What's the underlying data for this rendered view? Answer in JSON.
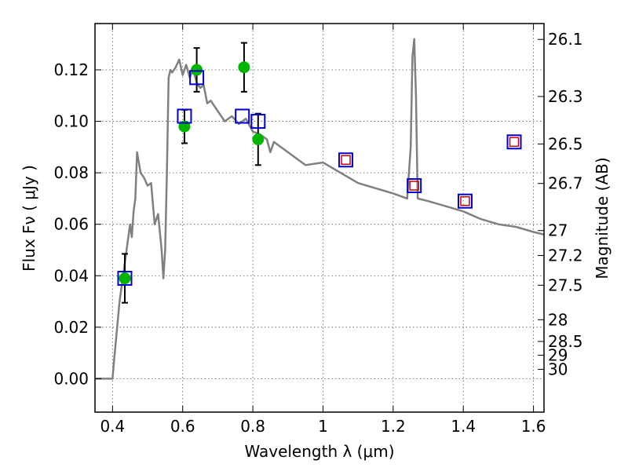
{
  "chart_data": {
    "type": "scatter",
    "xlabel": "Wavelength  λ (μm)",
    "ylabel": "Flux  Fν  ( μJy )",
    "y2label": "Magnitude (AB)",
    "xlim": [
      0.35,
      1.63
    ],
    "ylim": [
      -0.013,
      0.138
    ],
    "grid": true,
    "x_ticks": [
      0.4,
      0.6,
      0.8,
      1.0,
      1.2,
      1.4,
      1.6
    ],
    "x_tick_labels": [
      "0.4",
      "0.6",
      "0.8",
      "1",
      "1.2",
      "1.4",
      "1.6"
    ],
    "y_ticks": [
      0.0,
      0.02,
      0.04,
      0.06,
      0.08,
      0.1,
      0.12
    ],
    "y_tick_labels": [
      "0.00",
      "0.02",
      "0.04",
      "0.06",
      "0.08",
      "0.10",
      "0.12"
    ],
    "y2_ticks": [
      26.1,
      26.3,
      26.5,
      26.7,
      27.0,
      27.2,
      27.5,
      28.0,
      28.5,
      29.0,
      30.0
    ],
    "y2_tick_labels": [
      "26.1",
      "26.3",
      "26.5",
      "26.7",
      "27",
      "27.2",
      "27.5",
      "28",
      "28.5",
      "29",
      "30"
    ],
    "series": [
      {
        "kind": "line",
        "color": "#808080",
        "x": [
          0.35,
          0.4,
          0.405,
          0.42,
          0.43,
          0.44,
          0.45,
          0.455,
          0.46,
          0.465,
          0.47,
          0.48,
          0.49,
          0.5,
          0.51,
          0.52,
          0.53,
          0.54,
          0.545,
          0.55,
          0.555,
          0.56,
          0.565,
          0.57,
          0.58,
          0.59,
          0.6,
          0.61,
          0.62,
          0.63,
          0.64,
          0.65,
          0.66,
          0.67,
          0.68,
          0.7,
          0.72,
          0.74,
          0.76,
          0.78,
          0.8,
          0.82,
          0.84,
          0.85,
          0.86,
          0.88,
          0.9,
          0.95,
          1.0,
          1.05,
          1.1,
          1.15,
          1.2,
          1.24,
          1.25,
          1.255,
          1.26,
          1.265,
          1.27,
          1.3,
          1.35,
          1.4,
          1.45,
          1.5,
          1.55,
          1.6,
          1.63
        ],
        "y": [
          0.0,
          0.0,
          0.008,
          0.03,
          0.04,
          0.05,
          0.06,
          0.055,
          0.065,
          0.07,
          0.088,
          0.08,
          0.078,
          0.075,
          0.076,
          0.06,
          0.064,
          0.05,
          0.039,
          0.05,
          0.08,
          0.117,
          0.12,
          0.119,
          0.121,
          0.124,
          0.118,
          0.122,
          0.117,
          0.12,
          0.115,
          0.113,
          0.114,
          0.107,
          0.108,
          0.104,
          0.1,
          0.102,
          0.099,
          0.101,
          0.096,
          0.095,
          0.093,
          0.088,
          0.092,
          0.09,
          0.088,
          0.083,
          0.084,
          0.08,
          0.076,
          0.074,
          0.072,
          0.07,
          0.09,
          0.125,
          0.132,
          0.11,
          0.07,
          0.069,
          0.067,
          0.065,
          0.062,
          0.06,
          0.059,
          0.057,
          0.056
        ]
      },
      {
        "kind": "points",
        "marker": "circle",
        "color": "#00b400",
        "x": [
          0.435,
          0.605,
          0.64,
          0.775,
          0.815
        ],
        "y": [
          0.039,
          0.098,
          0.12,
          0.121,
          0.093
        ],
        "yerr": [
          0.0095,
          0.0065,
          0.0085,
          0.0095,
          0.01
        ]
      },
      {
        "kind": "points",
        "marker": "square-open",
        "color": "#0000cc",
        "x": [
          0.435,
          0.605,
          0.64,
          0.77,
          0.815,
          1.065,
          1.26,
          1.405,
          1.545
        ],
        "y": [
          0.039,
          0.102,
          0.117,
          0.102,
          0.1,
          0.085,
          0.075,
          0.069,
          0.092
        ]
      },
      {
        "kind": "points",
        "marker": "square-small-open",
        "color": "#cc0000",
        "x": [
          1.065,
          1.26,
          1.405,
          1.545
        ],
        "y": [
          0.085,
          0.075,
          0.069,
          0.092
        ]
      }
    ]
  }
}
